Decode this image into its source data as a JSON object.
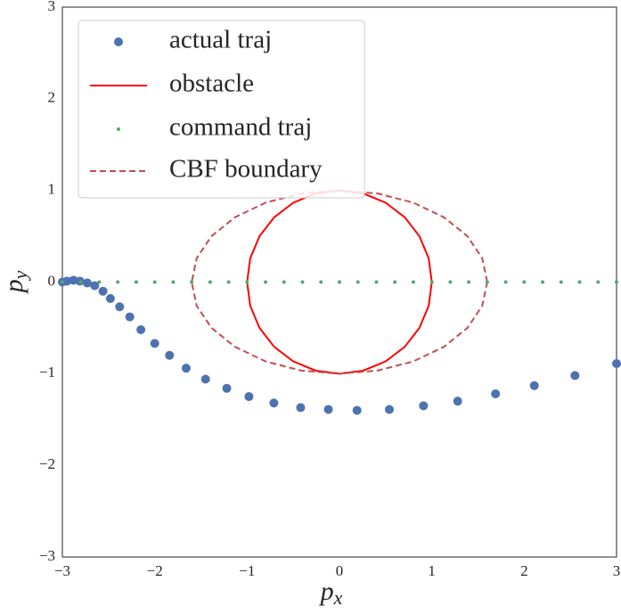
{
  "chart_data": {
    "type": "scatter",
    "xlabel": {
      "base": "p",
      "sub": "x"
    },
    "ylabel": {
      "base": "p",
      "sub": "y"
    },
    "xlim": [
      -3,
      3
    ],
    "ylim": [
      -3,
      3
    ],
    "xticks": [
      {
        "value": -3,
        "label": "−3"
      },
      {
        "value": -2,
        "label": "−2"
      },
      {
        "value": -1,
        "label": "−1"
      },
      0,
      1,
      2,
      3
    ],
    "yticks": [
      {
        "value": -3,
        "label": "−3"
      },
      {
        "value": -2,
        "label": "−2"
      },
      {
        "value": -1,
        "label": "−1"
      },
      0,
      1,
      2,
      3
    ],
    "grid": false,
    "legend": "upper left",
    "series": [
      {
        "name": "actual traj",
        "color": "#4c72b0",
        "style": "scatter",
        "marker_size": 5,
        "x": [
          -3,
          -2.95,
          -2.88,
          -2.81,
          -2.73,
          -2.65,
          -2.56,
          -2.48,
          -2.38,
          -2.27,
          -2.15,
          -2.0,
          -1.84,
          -1.66,
          -1.45,
          -1.22,
          -0.98,
          -0.71,
          -0.42,
          -0.12,
          0.19,
          0.54,
          0.91,
          1.28,
          1.69,
          2.11,
          2.55,
          3.0
        ],
        "values": [
          0,
          0.01,
          0.02,
          0.01,
          -0.01,
          -0.04,
          -0.1,
          -0.18,
          -0.27,
          -0.38,
          -0.52,
          -0.67,
          -0.8,
          -0.94,
          -1.06,
          -1.16,
          -1.25,
          -1.32,
          -1.37,
          -1.39,
          -1.4,
          -1.39,
          -1.35,
          -1.3,
          -1.22,
          -1.13,
          -1.02,
          -0.89
        ]
      },
      {
        "name": "obstacle",
        "color": "#ff0000",
        "style": "line",
        "x": [
          1,
          0.966,
          0.866,
          0.707,
          0.5,
          0.259,
          0,
          -0.259,
          -0.5,
          -0.707,
          -0.866,
          -0.966,
          -1,
          -0.966,
          -0.866,
          -0.707,
          -0.5,
          -0.259,
          0,
          0.259,
          0.5,
          0.707,
          0.866,
          0.966,
          1
        ],
        "values": [
          0,
          0.259,
          0.5,
          0.707,
          0.866,
          0.966,
          1,
          0.966,
          0.866,
          0.707,
          0.5,
          0.259,
          0,
          -0.259,
          -0.5,
          -0.707,
          -0.866,
          -0.966,
          -1,
          -0.966,
          -0.866,
          -0.707,
          -0.5,
          -0.259,
          0
        ]
      },
      {
        "name": "command traj",
        "color": "#55a868",
        "style": "scatter",
        "marker_size": 2,
        "x": [
          -3,
          -2.8,
          -2.6,
          -2.4,
          -2.2,
          -2,
          -1.8,
          -1.6,
          -1.4,
          -1.2,
          -1,
          -0.8,
          -0.6,
          -0.4,
          -0.2,
          0,
          0.2,
          0.4,
          0.6,
          0.8,
          1,
          1.2,
          1.4,
          1.6,
          1.8,
          2,
          2.2,
          2.4,
          2.6,
          2.8,
          3
        ],
        "values": [
          0,
          0,
          0,
          0,
          0,
          0,
          0,
          0,
          0,
          0,
          0,
          0,
          0,
          0,
          0,
          0,
          0,
          0,
          0,
          0,
          0,
          0,
          0,
          0,
          0,
          0,
          0,
          0,
          0,
          0,
          0
        ]
      },
      {
        "name": "CBF boundary",
        "color": "#c44e52",
        "style": "dashed",
        "x": [
          1.6,
          1.546,
          1.386,
          1.131,
          0.8,
          0.414,
          0,
          -0.414,
          -0.8,
          -1.131,
          -1.386,
          -1.546,
          -1.6,
          -1.546,
          -1.386,
          -1.131,
          -0.8,
          -0.414,
          0,
          0.414,
          0.8,
          1.131,
          1.386,
          1.546,
          1.6
        ],
        "values": [
          0,
          0.259,
          0.5,
          0.707,
          0.866,
          0.966,
          1,
          0.966,
          0.866,
          0.707,
          0.5,
          0.259,
          0,
          -0.259,
          -0.5,
          -0.707,
          -0.866,
          -0.966,
          -1,
          -0.966,
          -0.866,
          -0.707,
          -0.5,
          -0.259,
          0
        ]
      }
    ]
  }
}
